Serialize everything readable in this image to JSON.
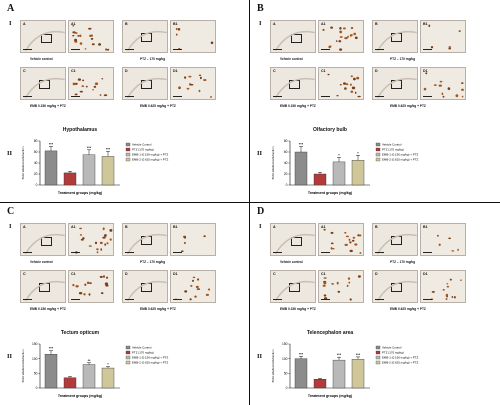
{
  "figure": {
    "panels": [
      {
        "label": "A",
        "section_i": "I",
        "section_ii": "II",
        "images": [
          {
            "tag": "A",
            "caption": "Vehicle control"
          },
          {
            "tag": "A1",
            "caption": ""
          },
          {
            "tag": "B",
            "caption": "PTZ – 170 mg/kg"
          },
          {
            "tag": "B1",
            "caption": ""
          },
          {
            "tag": "C",
            "caption": "EMB 0.156 mg/kg + PTZ"
          },
          {
            "tag": "C1",
            "caption": ""
          },
          {
            "tag": "D",
            "caption": "EMB 0.625 mg/kg + PTZ"
          },
          {
            "tag": "D1",
            "caption": ""
          }
        ],
        "chart_title": "Hypothalamus"
      },
      {
        "label": "B",
        "section_i": "I",
        "section_ii": "II",
        "images": [
          {
            "tag": "A",
            "caption": "Vehicle control"
          },
          {
            "tag": "A1",
            "caption": ""
          },
          {
            "tag": "B",
            "caption": "PTZ – 170 mg/kg"
          },
          {
            "tag": "B1",
            "caption": ""
          },
          {
            "tag": "C",
            "caption": "EMB 0.156 mg/kg + PTZ"
          },
          {
            "tag": "C1",
            "caption": ""
          },
          {
            "tag": "D",
            "caption": "EMB 0.625 mg/kg + PTZ"
          },
          {
            "tag": "D1",
            "caption": ""
          }
        ],
        "chart_title": "Olfactory bulb"
      },
      {
        "label": "C",
        "section_i": "I",
        "section_ii": "II",
        "images": [
          {
            "tag": "A",
            "caption": "Vehicle control"
          },
          {
            "tag": "A1",
            "caption": ""
          },
          {
            "tag": "B",
            "caption": "PTZ – 170 mg/kg"
          },
          {
            "tag": "B1",
            "caption": ""
          },
          {
            "tag": "C",
            "caption": "EMB 0.156 mg/kg + PTZ"
          },
          {
            "tag": "C1",
            "caption": ""
          },
          {
            "tag": "D",
            "caption": "EMB 0.625 mg/kg + PTZ"
          },
          {
            "tag": "D1",
            "caption": ""
          }
        ],
        "chart_title": "Tectum opticum"
      },
      {
        "label": "D",
        "section_i": "I",
        "section_ii": "II",
        "images": [
          {
            "tag": "A",
            "caption": "Vehicle control"
          },
          {
            "tag": "A1",
            "caption": ""
          },
          {
            "tag": "B",
            "caption": "PTZ – 170 mg/kg"
          },
          {
            "tag": "B1",
            "caption": ""
          },
          {
            "tag": "C",
            "caption": "EMB 0.156 mg/kg + PTZ"
          },
          {
            "tag": "C1",
            "caption": ""
          },
          {
            "tag": "D",
            "caption": "EMB 0.625 mg/kg + PTZ"
          },
          {
            "tag": "D1",
            "caption": ""
          }
        ],
        "chart_title": "Telencephalon area"
      }
    ],
    "scale_bar_overview": "500 µm",
    "scale_bar_zoom": "100 µm"
  },
  "chart_data": [
    {
      "type": "bar",
      "title": "Hypothalamus",
      "categories": [
        "Vehicle Control",
        "PTZ (170 mg/kg)",
        "EMB-1 (0.156 mg/kg) + PTZ",
        "EMB-2 (0.625 mg/kg) + PTZ"
      ],
      "values": [
        62,
        22,
        55,
        52
      ],
      "errors": [
        8,
        3,
        9,
        9
      ],
      "sig": [
        "***",
        "",
        "***",
        "***"
      ],
      "ylim": [
        0,
        80
      ],
      "yticks": [
        0,
        20,
        40,
        60,
        80
      ],
      "ylabel": "BrdU labelled cells/section",
      "xlabel": "Treatment groups (mg/kg)",
      "colors": [
        "#8c8c8c",
        "#b13a3a",
        "#b9b9b9",
        "#cfc79a"
      ]
    },
    {
      "type": "bar",
      "title": "Olfactory bulb",
      "categories": [
        "Vehicle Control",
        "PTZ (170 mg/kg)",
        "EMB-1 (0.156 mg/kg) + PTZ",
        "EMB-2 (0.625 mg/kg) + PTZ"
      ],
      "values": [
        60,
        20,
        42,
        45
      ],
      "errors": [
        10,
        3,
        8,
        9
      ],
      "sig": [
        "***",
        "",
        "*",
        "*"
      ],
      "ylim": [
        0,
        80
      ],
      "yticks": [
        0,
        20,
        40,
        60,
        80
      ],
      "ylabel": "BrdU labelled cells/section",
      "xlabel": "Treatment groups (mg/kg)",
      "colors": [
        "#8c8c8c",
        "#b13a3a",
        "#b9b9b9",
        "#cfc79a"
      ]
    },
    {
      "type": "bar",
      "title": "Tectum opticum",
      "categories": [
        "Vehicle Control",
        "PTZ (170 mg/kg)",
        "EMB-1 (0.156 mg/kg) + PTZ",
        "EMB-2 (0.625 mg/kg) + PTZ"
      ],
      "values": [
        115,
        35,
        80,
        68
      ],
      "errors": [
        12,
        4,
        6,
        5
      ],
      "sig": [
        "***",
        "",
        "**",
        "*"
      ],
      "ylim": [
        0,
        150
      ],
      "yticks": [
        0,
        50,
        100,
        150
      ],
      "ylabel": "BrdU labelled cells/section",
      "xlabel": "Treatment groups (mg/kg)",
      "colors": [
        "#8c8c8c",
        "#b13a3a",
        "#b9b9b9",
        "#cfc79a"
      ]
    },
    {
      "type": "bar",
      "title": "Telencephalon area",
      "categories": [
        "Vehicle Control",
        "PTZ (170 mg/kg)",
        "EMB-1 (0.156 mg/kg) + PTZ",
        "EMB-2 (0.625 mg/kg) + PTZ"
      ],
      "values": [
        100,
        30,
        95,
        98
      ],
      "errors": [
        8,
        3,
        10,
        8
      ],
      "sig": [
        "***",
        "",
        "***",
        "***"
      ],
      "ylim": [
        0,
        150
      ],
      "yticks": [
        0,
        50,
        100,
        150
      ],
      "ylabel": "BrdU labelled cells/section",
      "xlabel": "Treatment groups (mg/kg)",
      "colors": [
        "#8c8c8c",
        "#b13a3a",
        "#b9b9b9",
        "#cfc79a"
      ]
    }
  ]
}
